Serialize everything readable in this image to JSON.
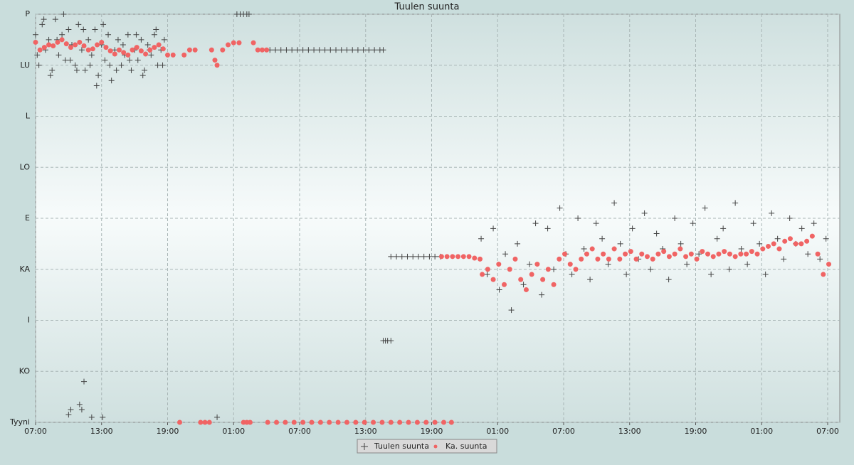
{
  "chart_data": {
    "type": "scatter",
    "title": "Tuulen suunta",
    "xlim": [
      0,
      73.1
    ],
    "ylim": [
      0,
      8
    ],
    "xticks": [
      {
        "value": 0,
        "label": "07:00"
      },
      {
        "value": 6,
        "label": "13:00"
      },
      {
        "value": 12,
        "label": "19:00"
      },
      {
        "value": 18,
        "label": "01:00"
      },
      {
        "value": 24,
        "label": "07:00"
      },
      {
        "value": 30,
        "label": "13:00"
      },
      {
        "value": 36,
        "label": "19:00"
      },
      {
        "value": 42,
        "label": "01:00"
      },
      {
        "value": 48,
        "label": "07:00"
      },
      {
        "value": 54,
        "label": "13:00"
      },
      {
        "value": 60,
        "label": "19:00"
      },
      {
        "value": 66,
        "label": "01:00"
      },
      {
        "value": 72,
        "label": "07:00"
      }
    ],
    "yticks": [
      {
        "value": 0,
        "label": "Tyyni"
      },
      {
        "value": 1,
        "label": "KO"
      },
      {
        "value": 2,
        "label": "I"
      },
      {
        "value": 3,
        "label": "KA"
      },
      {
        "value": 4,
        "label": "E"
      },
      {
        "value": 5,
        "label": "LO"
      },
      {
        "value": 6,
        "label": "L"
      },
      {
        "value": 7,
        "label": "LU"
      },
      {
        "value": 8,
        "label": "P"
      }
    ],
    "grid": true,
    "legend": "lower center",
    "series": [
      {
        "name": "Tuulen suunta",
        "color": "#444444",
        "marker": "plus",
        "x": [
          0,
          0.3,
          0.6,
          0.9,
          1.2,
          1.5,
          1.8,
          2.1,
          2.4,
          2.7,
          3,
          3.3,
          3.6,
          3.9,
          4.2,
          4.5,
          4.8,
          5.1,
          5.4,
          5.7,
          6,
          6.3,
          6.6,
          6.9,
          7.2,
          7.5,
          7.8,
          8.1,
          8.4,
          8.7,
          9,
          9.3,
          9.6,
          9.9,
          10.2,
          10.5,
          10.8,
          11.1,
          11.4,
          11.7,
          0.15,
          0.75,
          1.35,
          1.95,
          2.55,
          3.15,
          3.75,
          4.35,
          4.95,
          5.55,
          6.15,
          6.75,
          7.35,
          7.95,
          8.55,
          9.15,
          9.75,
          10.35,
          10.95,
          11.55,
          3.0,
          3.2,
          4.2,
          4.0,
          4.4,
          5.1,
          6.1,
          16.5,
          18.3,
          18.6,
          18.9,
          19.2,
          19.4,
          21.3,
          21.8,
          22.3,
          22.8,
          23.3,
          23.8,
          24.3,
          24.8,
          25.3,
          25.8,
          26.3,
          26.8,
          27.3,
          27.8,
          28.3,
          28.8,
          29.3,
          29.8,
          30.3,
          30.8,
          31.3,
          31.6,
          31.6,
          31.8,
          32.0,
          32.3,
          32.3,
          32.8,
          33.3,
          33.8,
          34.3,
          34.8,
          35.3,
          35.8,
          36.3,
          36.8,
          40.5,
          41.05,
          41.6,
          42.15,
          42.7,
          43.25,
          43.8,
          44.35,
          44.9,
          45.45,
          46.0,
          46.55,
          47.1,
          47.65,
          48.2,
          48.75,
          49.3,
          49.85,
          50.4,
          50.95,
          51.5,
          52.05,
          52.6,
          53.15,
          53.7,
          54.25,
          54.8,
          55.35,
          55.9,
          56.45,
          57.0,
          57.55,
          58.1,
          58.65,
          59.2,
          59.75,
          60.3,
          60.85,
          61.4,
          61.95,
          62.5,
          63.05,
          63.6,
          64.15,
          64.7,
          65.25,
          65.8,
          66.35,
          66.9,
          67.45,
          68.0,
          68.55,
          69.1,
          69.65,
          70.2,
          70.75,
          71.3,
          71.85
        ],
        "values": [
          7.6,
          7.0,
          7.8,
          7.3,
          7.5,
          6.9,
          7.9,
          7.2,
          7.6,
          7.1,
          7.7,
          7.4,
          7.0,
          7.8,
          7.3,
          6.9,
          7.5,
          7.2,
          7.7,
          6.8,
          7.4,
          7.1,
          7.6,
          6.7,
          7.3,
          7.5,
          7.0,
          7.2,
          7.6,
          6.9,
          7.3,
          7.1,
          7.5,
          6.9,
          7.4,
          7.2,
          7.6,
          7.0,
          7.3,
          7.5,
          7.2,
          7.9,
          6.8,
          7.5,
          8.0,
          7.1,
          6.9,
          7.7,
          7.0,
          6.6,
          7.8,
          7.0,
          6.9,
          7.4,
          7.1,
          7.6,
          6.8,
          7.3,
          7.7,
          7.0,
          0.15,
          0.25,
          0.25,
          0.35,
          0.8,
          0.1,
          0.1,
          0.1,
          8,
          8,
          8,
          8,
          8,
          7.3,
          7.3,
          7.3,
          7.3,
          7.3,
          7.3,
          7.3,
          7.3,
          7.3,
          7.3,
          7.3,
          7.3,
          7.3,
          7.3,
          7.3,
          7.3,
          7.3,
          7.3,
          7.3,
          7.3,
          7.3,
          7.3,
          1.6,
          1.6,
          1.6,
          1.6,
          3.25,
          3.25,
          3.25,
          3.25,
          3.25,
          3.25,
          3.25,
          3.25,
          3.25,
          3.25,
          3.6,
          2.9,
          3.8,
          2.6,
          3.3,
          2.2,
          3.5,
          2.7,
          3.1,
          3.9,
          2.5,
          3.8,
          3.0,
          4.2,
          3.3,
          2.9,
          4.0,
          3.4,
          2.8,
          3.9,
          3.6,
          3.1,
          4.3,
          3.5,
          2.9,
          3.8,
          3.2,
          4.1,
          3.0,
          3.7,
          3.4,
          2.8,
          4.0,
          3.5,
          3.1,
          3.9,
          3.3,
          4.2,
          2.9,
          3.6,
          3.8,
          3.0,
          4.3,
          3.4,
          3.1,
          3.9,
          3.5,
          2.9,
          4.1,
          3.6,
          3.2,
          4.0,
          3.5,
          3.8,
          3.3,
          3.9,
          3.2,
          3.6
        ]
      },
      {
        "name": "Ka. suunta",
        "color": "#f06464",
        "marker": "dot",
        "x": [
          0,
          0.4,
          0.8,
          1.2,
          1.6,
          2,
          2.4,
          2.8,
          3.2,
          3.6,
          4,
          4.4,
          4.8,
          5.2,
          5.6,
          6,
          6.4,
          6.8,
          7.2,
          7.6,
          8,
          8.4,
          8.8,
          9.2,
          9.6,
          10,
          10.4,
          10.8,
          11.2,
          11.6,
          12,
          12.5,
          13.1,
          13.5,
          14,
          14.5,
          15,
          15.4,
          15.8,
          16,
          16.3,
          16.5,
          17,
          17.5,
          18,
          18.5,
          18.9,
          19.2,
          19.5,
          19.8,
          20.2,
          20.6,
          21.0,
          21.1,
          21.9,
          22.7,
          23.5,
          24.3,
          25.1,
          25.9,
          26.7,
          27.5,
          28.3,
          29.1,
          29.9,
          30.7,
          31.5,
          32.3,
          33.1,
          33.9,
          34.7,
          35.5,
          36.3,
          37.1,
          37.8,
          36.9,
          37.4,
          37.9,
          38.4,
          38.9,
          39.4,
          39.9,
          40.4,
          40.6,
          41.1,
          41.6,
          42.1,
          42.6,
          43.1,
          43.6,
          44.1,
          44.6,
          45.1,
          45.6,
          46.1,
          46.6,
          47.1,
          47.6,
          48.1,
          48.6,
          49.1,
          49.6,
          50.1,
          50.6,
          51.1,
          51.6,
          52.1,
          52.6,
          53.1,
          53.6,
          54.1,
          54.6,
          55.1,
          55.6,
          56.1,
          56.6,
          57.1,
          57.6,
          58.1,
          58.6,
          59.1,
          59.6,
          60.1,
          60.6,
          61.1,
          61.6,
          62.1,
          62.6,
          63.1,
          63.6,
          64.1,
          64.6,
          65.1,
          65.6,
          66.1,
          66.6,
          67.1,
          67.6,
          68.1,
          68.6,
          69.1,
          69.6,
          70.1,
          70.6,
          71.1,
          71.6,
          72.1
        ],
        "values": [
          7.45,
          7.3,
          7.35,
          7.4,
          7.38,
          7.45,
          7.5,
          7.42,
          7.35,
          7.4,
          7.45,
          7.38,
          7.3,
          7.32,
          7.4,
          7.45,
          7.35,
          7.28,
          7.22,
          7.3,
          7.25,
          7.2,
          7.3,
          7.35,
          7.28,
          7.22,
          7.3,
          7.35,
          7.4,
          7.32,
          7.2,
          7.2,
          0,
          7.2,
          7.3,
          7.3,
          0,
          0,
          0,
          7.3,
          7.1,
          7.0,
          7.3,
          7.4,
          7.44,
          7.44,
          0,
          0,
          0,
          7.44,
          7.3,
          7.3,
          7.3,
          0,
          0,
          0,
          0,
          0,
          0,
          0,
          0,
          0,
          0,
          0,
          0,
          0,
          0,
          0,
          0,
          0,
          0,
          0,
          0,
          0,
          0,
          3.25,
          3.25,
          3.25,
          3.25,
          3.25,
          3.25,
          3.22,
          3.2,
          2.9,
          3.0,
          2.8,
          3.1,
          2.7,
          3.0,
          3.2,
          2.8,
          2.6,
          2.9,
          3.1,
          2.8,
          3.0,
          2.7,
          3.2,
          3.3,
          3.1,
          3.0,
          3.2,
          3.3,
          3.4,
          3.2,
          3.3,
          3.2,
          3.4,
          3.2,
          3.3,
          3.35,
          3.2,
          3.3,
          3.25,
          3.2,
          3.3,
          3.35,
          3.25,
          3.3,
          3.4,
          3.25,
          3.3,
          3.2,
          3.35,
          3.3,
          3.25,
          3.3,
          3.35,
          3.3,
          3.25,
          3.3,
          3.3,
          3.35,
          3.3,
          3.4,
          3.45,
          3.5,
          3.4,
          3.55,
          3.6,
          3.5,
          3.5,
          3.55,
          3.65,
          3.3,
          2.9,
          3.1
        ]
      }
    ]
  }
}
